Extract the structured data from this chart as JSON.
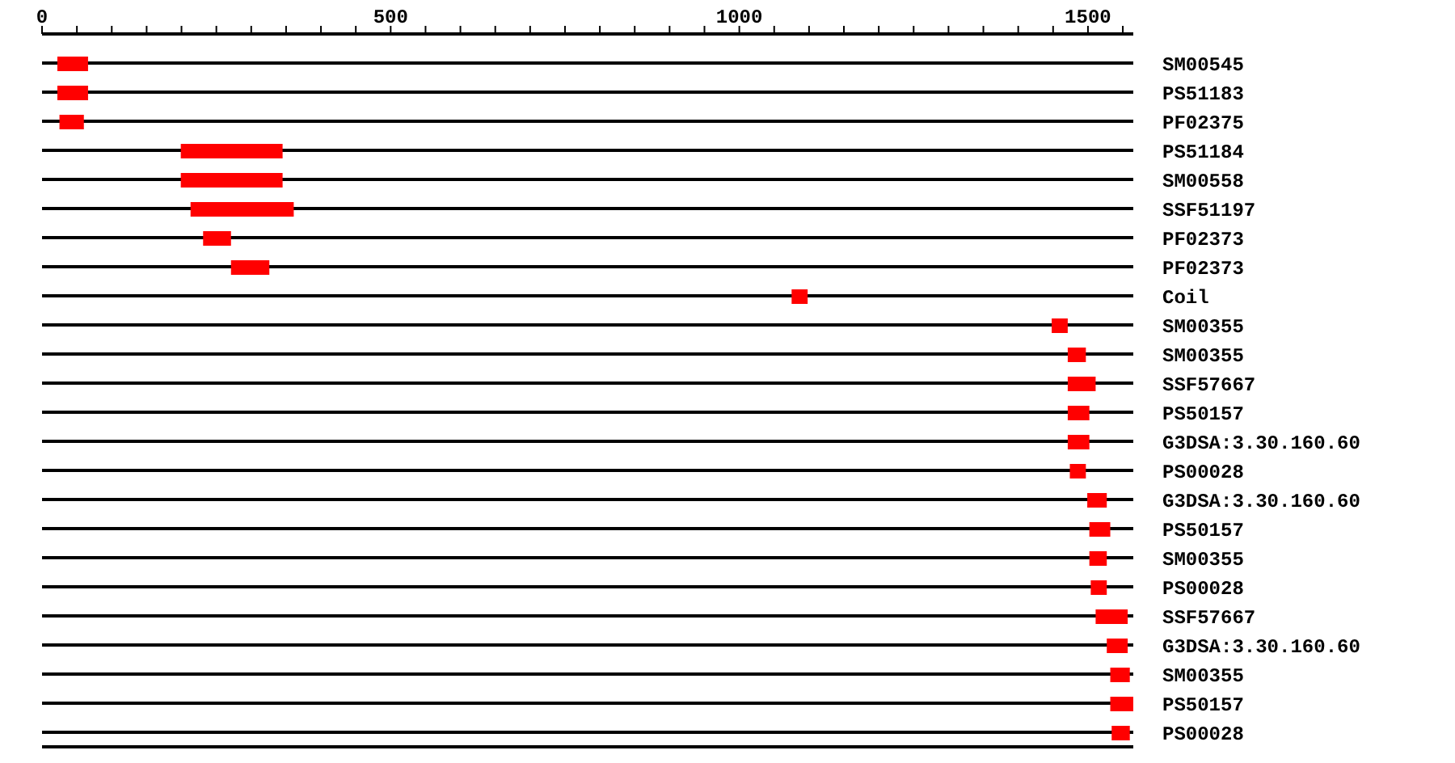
{
  "chart_data": {
    "type": "bar",
    "orientation": "horizontal",
    "grid": "y",
    "color": "#ff0000",
    "categories": [
      "SM00545",
      "PS51183",
      "PF02375",
      "PS51184",
      "SM00558",
      "SSF51197",
      "PF02373",
      "PF02373",
      "Coil",
      "SM00355",
      "SM00355",
      "SSF57667",
      "PS50157",
      "G3DSA:3.30.160.60",
      "PS00028",
      "G3DSA:3.30.160.60",
      "PS50157",
      "SM00355",
      "PS00028",
      "SSF57667",
      "G3DSA:3.30.160.60",
      "SM00355",
      "PS50157",
      "PS00028"
    ],
    "base": [
      22,
      22,
      25,
      199,
      199,
      213,
      231,
      271,
      1075,
      1448,
      1471,
      1471,
      1471,
      1471,
      1474,
      1499,
      1502,
      1502,
      1504,
      1511,
      1527,
      1532,
      1532,
      1534
    ],
    "values": [
      44,
      44,
      35,
      146,
      146,
      148,
      40,
      55,
      23,
      23,
      26,
      40,
      31,
      31,
      23,
      28,
      30,
      25,
      23,
      46,
      30,
      28,
      33,
      26
    ],
    "xlim": [
      0,
      1565
    ],
    "xticks": [
      0,
      {
        "value": 50,
        "label": null
      },
      {
        "value": 100,
        "label": null
      },
      {
        "value": 150,
        "label": null
      },
      {
        "value": 200,
        "label": null
      },
      {
        "value": 250,
        "label": null
      },
      {
        "value": 300,
        "label": null
      },
      {
        "value": 350,
        "label": null
      },
      {
        "value": 400,
        "label": null
      },
      {
        "value": 450,
        "label": null
      },
      500,
      {
        "value": 550,
        "label": null
      },
      {
        "value": 600,
        "label": null
      },
      {
        "value": 650,
        "label": null
      },
      {
        "value": 700,
        "label": null
      },
      {
        "value": 750,
        "label": null
      },
      {
        "value": 800,
        "label": null
      },
      {
        "value": 850,
        "label": null
      },
      {
        "value": 900,
        "label": null
      },
      {
        "value": 950,
        "label": null
      },
      1000,
      {
        "value": 1050,
        "label": null
      },
      {
        "value": 1100,
        "label": null
      },
      {
        "value": 1150,
        "label": null
      },
      {
        "value": 1200,
        "label": null
      },
      {
        "value": 1250,
        "label": null
      },
      {
        "value": 1300,
        "label": null
      },
      {
        "value": 1350,
        "label": null
      },
      {
        "value": 1400,
        "label": null
      },
      {
        "value": 1450,
        "label": null
      },
      1500,
      {
        "value": 1550,
        "label": null
      }
    ]
  }
}
